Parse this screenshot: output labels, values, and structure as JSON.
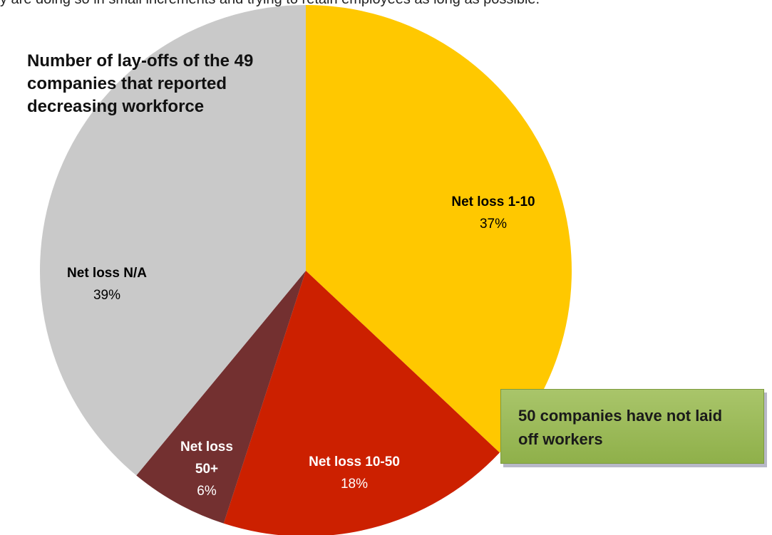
{
  "caption": "y are doing so in small increments and trying to retain employees as long as possible.",
  "chart_data": {
    "type": "pie",
    "title": "Number of lay-offs of the 49 companies that reported decreasing workforce",
    "categories": [
      "Net loss 1-10",
      "Net loss 10-50",
      "Net loss 50+",
      "Net loss N/A"
    ],
    "values": [
      37,
      18,
      6,
      39
    ],
    "value_labels": [
      "37%",
      "18%",
      "6%",
      "39%"
    ],
    "colors": [
      "#ffc800",
      "#cc2000",
      "#733030",
      "#c9c9c9"
    ],
    "label_colors": [
      "#000000",
      "#ffffff",
      "#ffffff",
      "#000000"
    ],
    "annotation": "50 companies have not laid off workers"
  }
}
